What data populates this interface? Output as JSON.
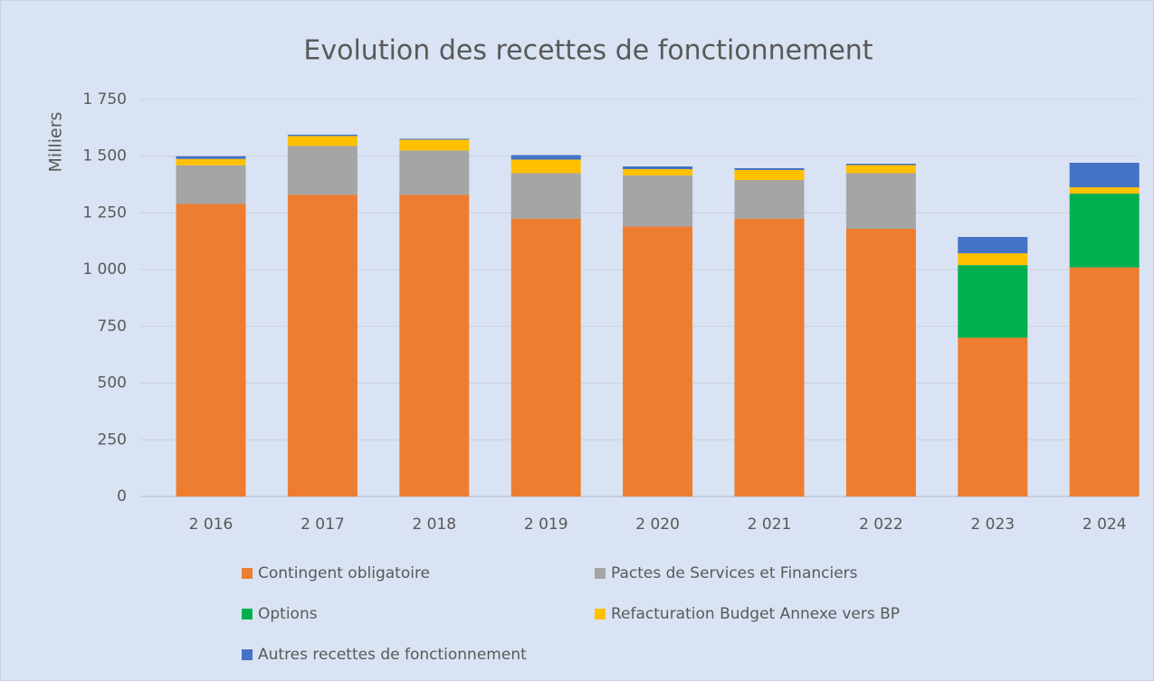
{
  "chart_data": {
    "type": "stacked_bar",
    "title": "Evolution des recettes de fonctionnement",
    "y_label": "Milliers",
    "categories": [
      "2 016",
      "2 017",
      "2 018",
      "2 019",
      "2 020",
      "2 021",
      "2 022",
      "2 023",
      "2 024"
    ],
    "series": [
      {
        "name": "Contingent obligatoire",
        "color": "#ed7d31",
        "values": [
          1290,
          1330,
          1330,
          1225,
          1190,
          1225,
          1180,
          700,
          1010
        ]
      },
      {
        "name": "Pactes de Services et Financiers",
        "color": "#a5a5a5",
        "values": [
          170,
          215,
          195,
          200,
          225,
          170,
          245,
          0,
          0
        ]
      },
      {
        "name": "Options",
        "color": "#00b050",
        "values": [
          0,
          0,
          0,
          0,
          0,
          0,
          0,
          320,
          325
        ]
      },
      {
        "name": "Refacturation Budget Annexe vers BP",
        "color": "#ffc000",
        "values": [
          28,
          44,
          48,
          60,
          28,
          44,
          36,
          52,
          28
        ]
      },
      {
        "name": "Autres recettes de fonctionnement",
        "color": "#4472c4",
        "values": [
          12,
          6,
          4,
          20,
          12,
          8,
          6,
          72,
          108
        ]
      }
    ],
    "ylim": [
      0,
      1750
    ],
    "yticks": [
      0,
      250,
      500,
      750,
      {
        "value": 1000,
        "label": "1 000"
      },
      {
        "value": 1250,
        "label": "1 250"
      },
      {
        "value": 1500,
        "label": "1 500"
      },
      {
        "value": 1750,
        "label": "1 750"
      }
    ],
    "grid": true,
    "legend": "bottom"
  }
}
